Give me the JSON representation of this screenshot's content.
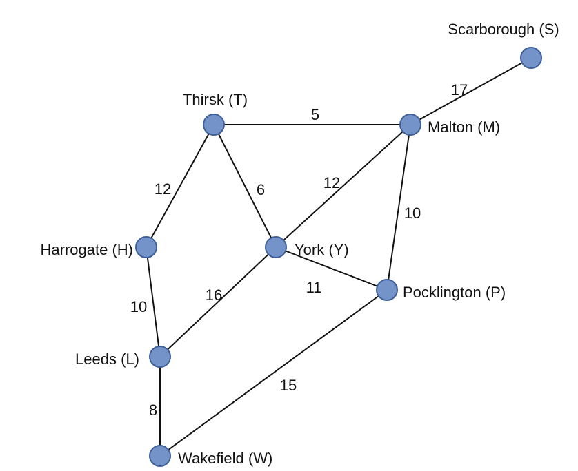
{
  "colors": {
    "node_fill": "#7393c9",
    "node_stroke": "#3f5f98",
    "edge": "#111111",
    "text": "#111111",
    "background": "#ffffff"
  },
  "nodes": [
    {
      "id": "S",
      "label": "Scarborough (S)"
    },
    {
      "id": "T",
      "label": "Thirsk (T)"
    },
    {
      "id": "M",
      "label": "Malton (M)"
    },
    {
      "id": "H",
      "label": "Harrogate (H)"
    },
    {
      "id": "Y",
      "label": "York (Y)"
    },
    {
      "id": "P",
      "label": "Pocklington (P)"
    },
    {
      "id": "L",
      "label": "Leeds (L)"
    },
    {
      "id": "W",
      "label": "Wakefield (W)"
    }
  ],
  "edges": [
    {
      "from": "M",
      "to": "S",
      "weight": "17"
    },
    {
      "from": "T",
      "to": "M",
      "weight": "5"
    },
    {
      "from": "T",
      "to": "H",
      "weight": "12"
    },
    {
      "from": "T",
      "to": "Y",
      "weight": "6"
    },
    {
      "from": "Y",
      "to": "M",
      "weight": "12"
    },
    {
      "from": "M",
      "to": "P",
      "weight": "10"
    },
    {
      "from": "H",
      "to": "L",
      "weight": "10"
    },
    {
      "from": "Y",
      "to": "L",
      "weight": "16"
    },
    {
      "from": "Y",
      "to": "P",
      "weight": "11"
    },
    {
      "from": "L",
      "to": "W",
      "weight": "8"
    },
    {
      "from": "P",
      "to": "W",
      "weight": "15"
    }
  ]
}
